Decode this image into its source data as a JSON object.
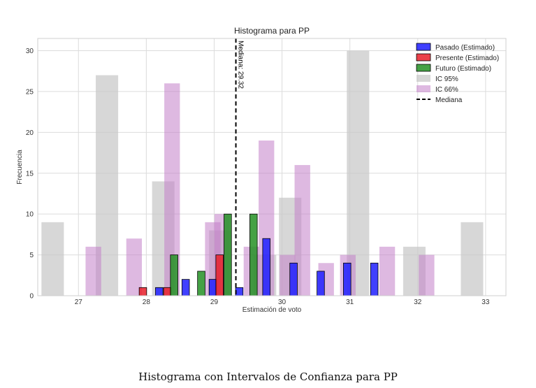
{
  "caption": "Histograma con Intervalos de Confianza para PP",
  "chart_data": {
    "type": "bar",
    "title": "Histograma para PP",
    "xlabel": "Estimación de voto",
    "ylabel": "Frecuencia",
    "xlim": [
      26.4,
      33.3
    ],
    "ylim": [
      0,
      31.5
    ],
    "xticks": [
      27,
      28,
      29,
      30,
      31,
      32,
      33
    ],
    "yticks": [
      0,
      5,
      10,
      15,
      20,
      25,
      30
    ],
    "grid": true,
    "legend_position": "top-right",
    "colors": {
      "pasado": "#1f1fff",
      "presente": "#e8202a",
      "futuro": "#249124",
      "ic95": "#c8c8c8",
      "ic66": "#c27fc9",
      "mediana": "#000000"
    },
    "series": [
      {
        "key": "ic95",
        "name": "IC 95%",
        "bin_width": 0.33,
        "bins": [
          {
            "x": 26.62,
            "value": 9
          },
          {
            "x": 27.42,
            "value": 27
          },
          {
            "x": 28.25,
            "value": 14
          },
          {
            "x": 29.09,
            "value": 8
          },
          {
            "x": 29.75,
            "value": 5
          },
          {
            "x": 30.12,
            "value": 12
          },
          {
            "x": 31.12,
            "value": 30
          },
          {
            "x": 31.95,
            "value": 6
          },
          {
            "x": 32.8,
            "value": 9
          }
        ]
      },
      {
        "key": "ic66",
        "name": "IC 66%",
        "bin_width": 0.23,
        "bins": [
          {
            "x": 27.22,
            "value": 6
          },
          {
            "x": 27.82,
            "value": 7
          },
          {
            "x": 28.38,
            "value": 26
          },
          {
            "x": 28.98,
            "value": 9
          },
          {
            "x": 29.12,
            "value": 10
          },
          {
            "x": 29.55,
            "value": 6
          },
          {
            "x": 29.77,
            "value": 19
          },
          {
            "x": 30.08,
            "value": 5
          },
          {
            "x": 30.3,
            "value": 16
          },
          {
            "x": 30.65,
            "value": 4
          },
          {
            "x": 30.97,
            "value": 5
          },
          {
            "x": 31.55,
            "value": 6
          },
          {
            "x": 32.13,
            "value": 5
          }
        ]
      },
      {
        "key": "pasado",
        "name": "Pasado (Estimado)",
        "bin_width": 0.11,
        "bins": [
          {
            "x": 28.19,
            "value": 1
          },
          {
            "x": 28.58,
            "value": 2
          },
          {
            "x": 28.98,
            "value": 2
          },
          {
            "x": 29.37,
            "value": 1
          },
          {
            "x": 29.77,
            "value": 7
          },
          {
            "x": 30.17,
            "value": 4
          },
          {
            "x": 30.57,
            "value": 3
          },
          {
            "x": 30.96,
            "value": 4
          },
          {
            "x": 31.36,
            "value": 4
          }
        ]
      },
      {
        "key": "presente",
        "name": "Presente (Estimado)",
        "bin_width": 0.11,
        "bins": [
          {
            "x": 27.95,
            "value": 1
          },
          {
            "x": 28.31,
            "value": 1
          },
          {
            "x": 29.08,
            "value": 5
          }
        ]
      },
      {
        "key": "futuro",
        "name": "Futuro (Estimado)",
        "bin_width": 0.11,
        "bins": [
          {
            "x": 28.41,
            "value": 5
          },
          {
            "x": 28.81,
            "value": 3
          },
          {
            "x": 29.2,
            "value": 10
          },
          {
            "x": 29.58,
            "value": 10
          }
        ]
      }
    ],
    "median": {
      "name": "Mediana",
      "value": 29.32,
      "label": "Mediana: 29.32"
    }
  }
}
